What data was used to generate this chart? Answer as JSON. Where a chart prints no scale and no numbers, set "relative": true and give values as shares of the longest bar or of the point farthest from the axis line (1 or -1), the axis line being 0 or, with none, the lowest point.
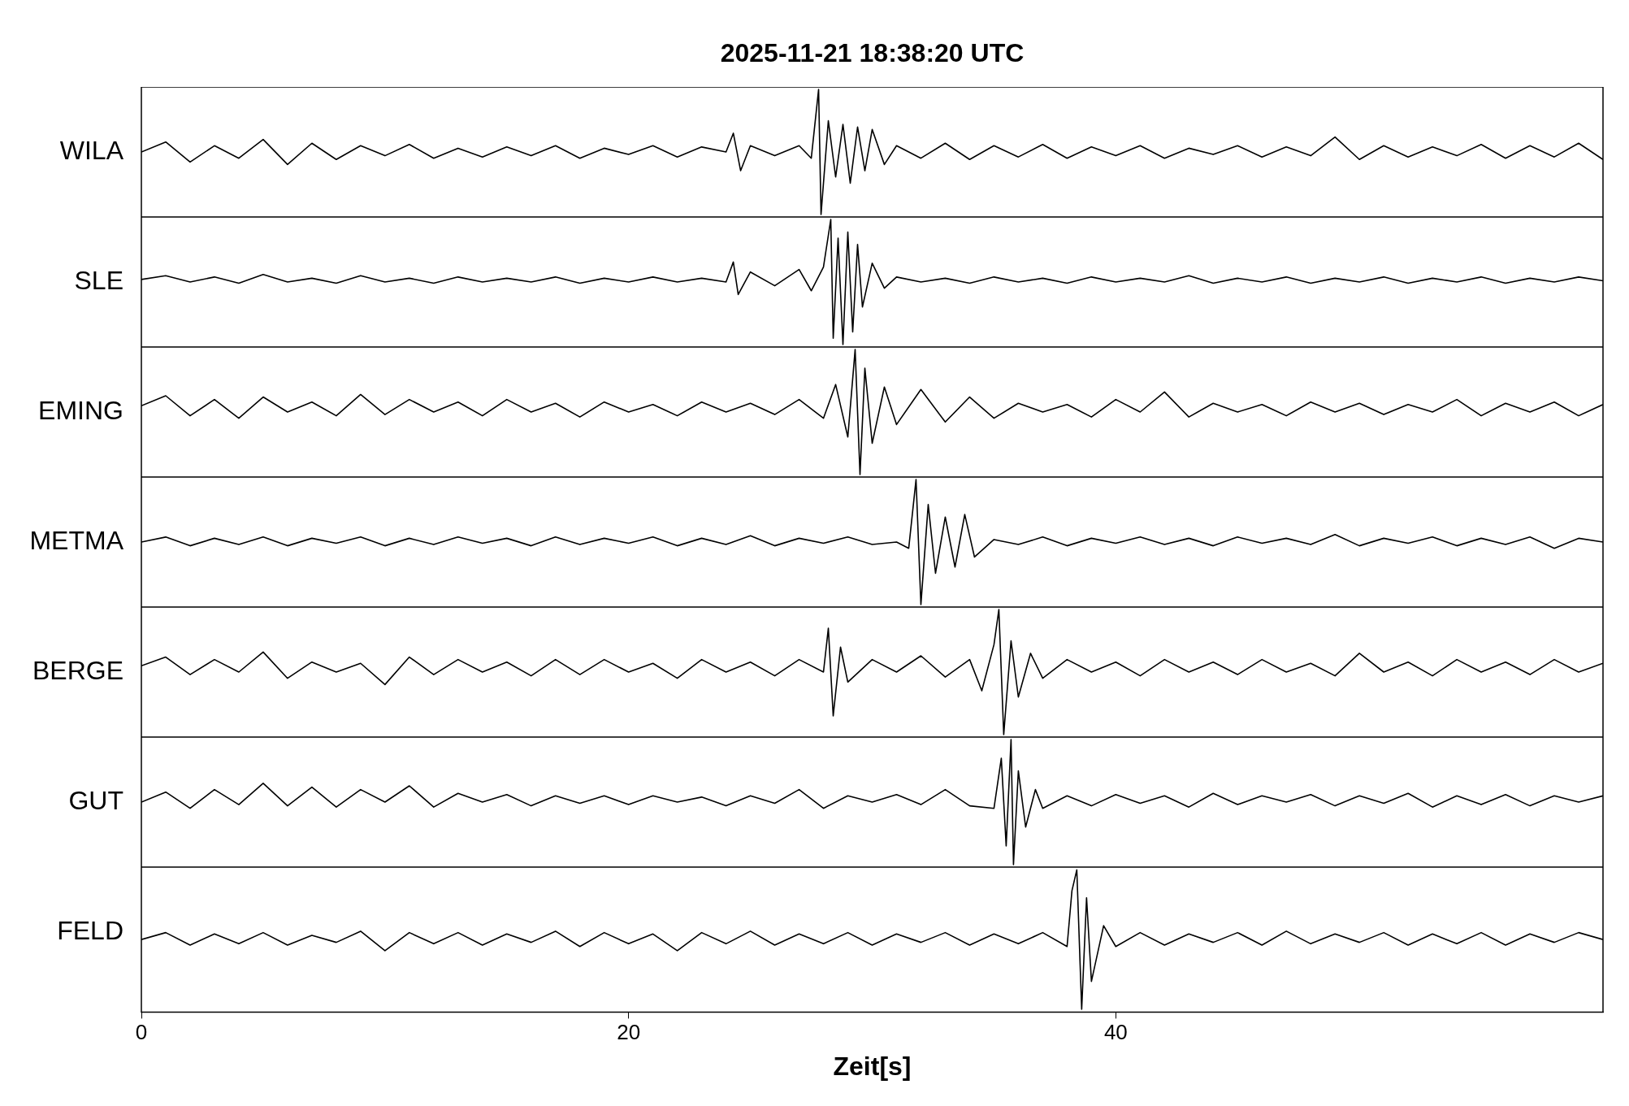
{
  "chart_data": [
    {
      "type": "line",
      "title": "2025-11-21  18:38:20 UTC",
      "ylabel": "WILA",
      "relative": true,
      "xlim": [
        0,
        60
      ],
      "xticks": [
        0,
        20,
        40
      ],
      "tick_labels": false,
      "marker": "none",
      "x": [
        0,
        1,
        2,
        3,
        4,
        5,
        6,
        7,
        8,
        9,
        10,
        11,
        12,
        13,
        14,
        15,
        16,
        17,
        18,
        19,
        20,
        21,
        22,
        23,
        24,
        24.3,
        24.6,
        25,
        26,
        27,
        27.5,
        27.8,
        27.9,
        28.2,
        28.5,
        28.8,
        29.1,
        29.4,
        29.7,
        30,
        30.5,
        31,
        32,
        33,
        34,
        35,
        36,
        37,
        38,
        39,
        40,
        41,
        42,
        43,
        44,
        45,
        46,
        47,
        48,
        49,
        50,
        51,
        52,
        53,
        54,
        55,
        56,
        57,
        58,
        59,
        60
      ],
      "series": [
        {
          "color": "#000000",
          "values": [
            0.5,
            0.58,
            0.42,
            0.55,
            0.45,
            0.6,
            0.4,
            0.57,
            0.44,
            0.55,
            0.47,
            0.56,
            0.45,
            0.53,
            0.46,
            0.54,
            0.47,
            0.55,
            0.45,
            0.53,
            0.48,
            0.55,
            0.46,
            0.54,
            0.5,
            0.65,
            0.35,
            0.55,
            0.47,
            0.55,
            0.45,
            1,
            0,
            0.75,
            0.3,
            0.72,
            0.25,
            0.7,
            0.35,
            0.68,
            0.4,
            0.55,
            0.45,
            0.57,
            0.44,
            0.55,
            0.46,
            0.56,
            0.45,
            0.54,
            0.47,
            0.55,
            0.45,
            0.53,
            0.48,
            0.55,
            0.46,
            0.54,
            0.47,
            0.62,
            0.44,
            0.55,
            0.46,
            0.54,
            0.47,
            0.56,
            0.45,
            0.55,
            0.46,
            0.57,
            0.44
          ]
        }
      ]
    },
    {
      "type": "line",
      "ylabel": "SLE",
      "relative": true,
      "xlim": [
        0,
        60
      ],
      "xticks": [
        0,
        20,
        40
      ],
      "tick_labels": false,
      "marker": "none",
      "x": [
        0,
        1,
        2,
        3,
        4,
        5,
        6,
        7,
        8,
        9,
        10,
        11,
        12,
        13,
        14,
        15,
        16,
        17,
        18,
        19,
        20,
        21,
        22,
        23,
        24,
        24.3,
        24.5,
        25,
        26,
        27,
        27.5,
        28,
        28.3,
        28.4,
        28.6,
        28.8,
        29,
        29.2,
        29.4,
        29.6,
        30,
        30.5,
        31,
        32,
        33,
        34,
        35,
        36,
        37,
        38,
        39,
        40,
        41,
        42,
        43,
        44,
        45,
        46,
        47,
        48,
        49,
        50,
        51,
        52,
        53,
        54,
        55,
        56,
        57,
        58,
        59,
        60
      ],
      "series": [
        {
          "color": "#000000",
          "values": [
            0.52,
            0.55,
            0.5,
            0.54,
            0.49,
            0.56,
            0.5,
            0.53,
            0.49,
            0.55,
            0.5,
            0.53,
            0.49,
            0.54,
            0.5,
            0.53,
            0.5,
            0.54,
            0.49,
            0.53,
            0.5,
            0.54,
            0.5,
            0.53,
            0.5,
            0.66,
            0.4,
            0.58,
            0.47,
            0.6,
            0.43,
            0.62,
            1,
            0.05,
            0.85,
            0,
            0.9,
            0.1,
            0.8,
            0.3,
            0.65,
            0.45,
            0.54,
            0.5,
            0.53,
            0.49,
            0.54,
            0.5,
            0.53,
            0.49,
            0.54,
            0.5,
            0.53,
            0.5,
            0.55,
            0.49,
            0.53,
            0.5,
            0.54,
            0.49,
            0.53,
            0.5,
            0.54,
            0.49,
            0.53,
            0.5,
            0.54,
            0.49,
            0.53,
            0.5,
            0.54,
            0.51
          ]
        }
      ]
    },
    {
      "type": "line",
      "ylabel": "EMING",
      "relative": true,
      "xlim": [
        0,
        60
      ],
      "xticks": [
        0,
        20,
        40
      ],
      "tick_labels": false,
      "marker": "none",
      "x": [
        0,
        1,
        2,
        3,
        4,
        5,
        6,
        7,
        8,
        9,
        10,
        11,
        12,
        13,
        14,
        15,
        16,
        17,
        18,
        19,
        20,
        21,
        22,
        23,
        24,
        25,
        26,
        27,
        28,
        28.5,
        29,
        29.3,
        29.5,
        29.7,
        30,
        30.5,
        31,
        32,
        33,
        34,
        35,
        36,
        37,
        38,
        39,
        40,
        41,
        42,
        43,
        44,
        45,
        46,
        47,
        48,
        49,
        50,
        51,
        52,
        53,
        54,
        55,
        56,
        57,
        58,
        59,
        60
      ],
      "series": [
        {
          "color": "#000000",
          "values": [
            0.55,
            0.63,
            0.47,
            0.6,
            0.45,
            0.62,
            0.5,
            0.58,
            0.47,
            0.64,
            0.48,
            0.6,
            0.5,
            0.58,
            0.47,
            0.6,
            0.5,
            0.57,
            0.46,
            0.58,
            0.5,
            0.56,
            0.47,
            0.58,
            0.5,
            0.57,
            0.48,
            0.6,
            0.45,
            0.72,
            0.3,
            1,
            0,
            0.85,
            0.25,
            0.7,
            0.4,
            0.68,
            0.42,
            0.62,
            0.45,
            0.57,
            0.5,
            0.56,
            0.46,
            0.6,
            0.5,
            0.66,
            0.46,
            0.57,
            0.5,
            0.56,
            0.47,
            0.58,
            0.5,
            0.57,
            0.48,
            0.56,
            0.5,
            0.6,
            0.47,
            0.57,
            0.5,
            0.58,
            0.47,
            0.56
          ]
        }
      ]
    },
    {
      "type": "line",
      "ylabel": "METMA",
      "relative": true,
      "xlim": [
        0,
        60
      ],
      "xticks": [
        0,
        20,
        40
      ],
      "tick_labels": false,
      "marker": "none",
      "x": [
        0,
        1,
        2,
        3,
        4,
        5,
        6,
        7,
        8,
        9,
        10,
        11,
        12,
        13,
        14,
        15,
        16,
        17,
        18,
        19,
        20,
        21,
        22,
        23,
        24,
        25,
        26,
        27,
        28,
        29,
        30,
        31,
        31.5,
        31.8,
        32,
        32.3,
        32.6,
        33,
        33.4,
        33.8,
        34.2,
        35,
        36,
        37,
        38,
        39,
        40,
        41,
        42,
        43,
        44,
        45,
        46,
        47,
        48,
        49,
        50,
        51,
        52,
        53,
        54,
        55,
        56,
        57,
        58,
        59,
        60
      ],
      "series": [
        {
          "color": "#000000",
          "values": [
            0.5,
            0.54,
            0.47,
            0.53,
            0.48,
            0.54,
            0.47,
            0.53,
            0.49,
            0.54,
            0.47,
            0.53,
            0.48,
            0.54,
            0.49,
            0.53,
            0.47,
            0.54,
            0.48,
            0.53,
            0.49,
            0.54,
            0.47,
            0.53,
            0.48,
            0.55,
            0.47,
            0.53,
            0.49,
            0.54,
            0.48,
            0.5,
            0.45,
            1,
            0,
            0.8,
            0.25,
            0.7,
            0.3,
            0.72,
            0.38,
            0.52,
            0.48,
            0.54,
            0.47,
            0.53,
            0.49,
            0.54,
            0.48,
            0.53,
            0.47,
            0.54,
            0.49,
            0.53,
            0.48,
            0.56,
            0.47,
            0.53,
            0.49,
            0.54,
            0.47,
            0.53,
            0.48,
            0.54,
            0.45,
            0.53,
            0.5
          ]
        }
      ]
    },
    {
      "type": "line",
      "ylabel": "BERGE",
      "relative": true,
      "xlim": [
        0,
        60
      ],
      "xticks": [
        0,
        20,
        40
      ],
      "tick_labels": false,
      "marker": "none",
      "x": [
        0,
        1,
        2,
        3,
        4,
        5,
        6,
        7,
        8,
        9,
        10,
        11,
        12,
        13,
        14,
        15,
        16,
        17,
        18,
        19,
        20,
        21,
        22,
        23,
        24,
        25,
        26,
        27,
        28,
        28.2,
        28.4,
        28.7,
        29,
        30,
        31,
        32,
        33,
        34,
        34.5,
        35,
        35.2,
        35.4,
        35.7,
        36,
        36.5,
        37,
        38,
        39,
        40,
        41,
        42,
        43,
        44,
        45,
        46,
        47,
        48,
        49,
        50,
        51,
        52,
        53,
        54,
        55,
        56,
        57,
        58,
        59,
        60
      ],
      "series": [
        {
          "color": "#000000",
          "values": [
            0.55,
            0.62,
            0.48,
            0.6,
            0.5,
            0.66,
            0.45,
            0.58,
            0.5,
            0.57,
            0.4,
            0.62,
            0.48,
            0.6,
            0.5,
            0.58,
            0.47,
            0.6,
            0.48,
            0.6,
            0.5,
            0.57,
            0.45,
            0.6,
            0.5,
            0.58,
            0.47,
            0.6,
            0.5,
            0.85,
            0.15,
            0.7,
            0.42,
            0.6,
            0.5,
            0.63,
            0.46,
            0.6,
            0.35,
            0.72,
            1,
            0,
            0.75,
            0.3,
            0.65,
            0.45,
            0.6,
            0.5,
            0.58,
            0.47,
            0.6,
            0.5,
            0.58,
            0.48,
            0.6,
            0.5,
            0.57,
            0.47,
            0.65,
            0.5,
            0.58,
            0.47,
            0.6,
            0.5,
            0.58,
            0.48,
            0.6,
            0.5,
            0.57
          ]
        }
      ]
    },
    {
      "type": "line",
      "ylabel": "GUT",
      "relative": true,
      "xlim": [
        0,
        60
      ],
      "xticks": [
        0,
        20,
        40
      ],
      "tick_labels": false,
      "marker": "none",
      "x": [
        0,
        1,
        2,
        3,
        4,
        5,
        6,
        7,
        8,
        9,
        10,
        11,
        12,
        13,
        14,
        15,
        16,
        17,
        18,
        19,
        20,
        21,
        22,
        23,
        24,
        25,
        26,
        27,
        28,
        29,
        30,
        31,
        32,
        33,
        34,
        35,
        35.3,
        35.5,
        35.7,
        35.8,
        36,
        36.3,
        36.7,
        37,
        38,
        39,
        40,
        41,
        42,
        43,
        44,
        45,
        46,
        47,
        48,
        49,
        50,
        51,
        52,
        53,
        54,
        55,
        56,
        57,
        58,
        59,
        60
      ],
      "series": [
        {
          "color": "#000000",
          "values": [
            0.5,
            0.58,
            0.45,
            0.6,
            0.48,
            0.65,
            0.47,
            0.62,
            0.46,
            0.6,
            0.5,
            0.63,
            0.46,
            0.57,
            0.5,
            0.56,
            0.47,
            0.55,
            0.49,
            0.55,
            0.48,
            0.55,
            0.5,
            0.54,
            0.47,
            0.55,
            0.49,
            0.6,
            0.45,
            0.55,
            0.5,
            0.56,
            0.48,
            0.6,
            0.47,
            0.45,
            0.85,
            0.15,
            1,
            0,
            0.75,
            0.3,
            0.6,
            0.45,
            0.55,
            0.47,
            0.56,
            0.49,
            0.55,
            0.46,
            0.57,
            0.48,
            0.55,
            0.5,
            0.56,
            0.47,
            0.55,
            0.49,
            0.57,
            0.46,
            0.55,
            0.48,
            0.56,
            0.47,
            0.55,
            0.5,
            0.55
          ]
        }
      ]
    },
    {
      "type": "line",
      "xlabel": "Zeit[s]",
      "ylabel": "FELD",
      "relative": true,
      "xlim": [
        0,
        60
      ],
      "xticks": [
        0,
        20,
        40
      ],
      "tick_labels": "x",
      "marker": "none",
      "x": [
        0,
        1,
        2,
        3,
        4,
        5,
        6,
        7,
        8,
        9,
        10,
        11,
        12,
        13,
        14,
        15,
        16,
        17,
        18,
        19,
        20,
        21,
        22,
        23,
        24,
        25,
        26,
        27,
        28,
        29,
        30,
        31,
        32,
        33,
        34,
        35,
        36,
        37,
        38,
        38.2,
        38.4,
        38.6,
        38.8,
        39,
        39.5,
        40,
        41,
        42,
        43,
        44,
        45,
        46,
        47,
        48,
        49,
        50,
        51,
        52,
        53,
        54,
        55,
        56,
        57,
        58,
        59,
        60
      ],
      "series": [
        {
          "color": "#000000",
          "values": [
            0.5,
            0.55,
            0.46,
            0.54,
            0.47,
            0.55,
            0.46,
            0.53,
            0.48,
            0.56,
            0.42,
            0.55,
            0.47,
            0.55,
            0.46,
            0.54,
            0.48,
            0.56,
            0.45,
            0.55,
            0.47,
            0.54,
            0.42,
            0.55,
            0.47,
            0.56,
            0.46,
            0.54,
            0.47,
            0.55,
            0.46,
            0.54,
            0.48,
            0.55,
            0.46,
            0.54,
            0.47,
            0.55,
            0.45,
            0.85,
            1,
            0,
            0.8,
            0.2,
            0.6,
            0.45,
            0.55,
            0.46,
            0.54,
            0.48,
            0.55,
            0.46,
            0.56,
            0.47,
            0.54,
            0.48,
            0.55,
            0.46,
            0.54,
            0.47,
            0.55,
            0.46,
            0.54,
            0.48,
            0.55,
            0.5
          ]
        }
      ]
    }
  ]
}
